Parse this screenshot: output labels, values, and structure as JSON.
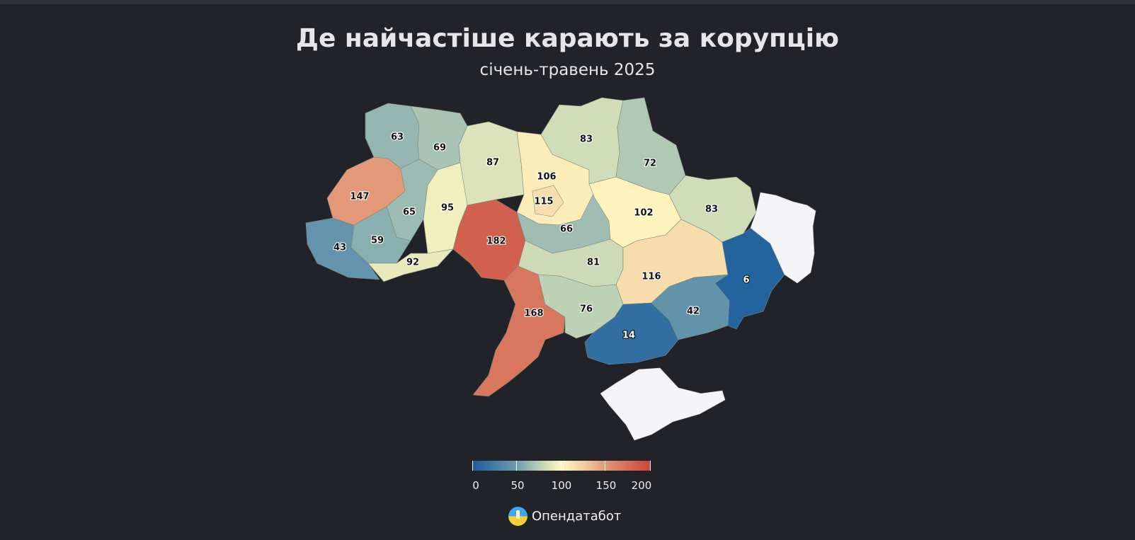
{
  "title": "Де найчастіше карають за корупцію",
  "subtitle": "січень-травень 2025",
  "legend": {
    "ticks": [
      "0",
      "50",
      "100",
      "150",
      "200"
    ],
    "range": [
      0,
      200
    ],
    "colors": [
      "#1a5c9c",
      "#6f9dae",
      "#c9d9b6",
      "#fff6c0",
      "#f2cfa0",
      "#e19272",
      "#c8443a"
    ]
  },
  "brand": {
    "name": "Опендатабот",
    "icon": "opendatabot-logo-icon"
  },
  "regions": [
    {
      "id": "volyn",
      "value": 63
    },
    {
      "id": "rivne",
      "value": 69
    },
    {
      "id": "zhytomyr",
      "value": 87
    },
    {
      "id": "kyiv-oblast",
      "value": 106
    },
    {
      "id": "kyiv-city",
      "value": 115
    },
    {
      "id": "chernihiv",
      "value": 83
    },
    {
      "id": "sumy",
      "value": 72
    },
    {
      "id": "lviv",
      "value": 147
    },
    {
      "id": "ternopil",
      "value": 65
    },
    {
      "id": "khmelnytskyi",
      "value": 95
    },
    {
      "id": "ivano-frankivsk",
      "value": 59
    },
    {
      "id": "zakarpattia",
      "value": 43
    },
    {
      "id": "chernivtsi",
      "value": 92
    },
    {
      "id": "vinnytsia",
      "value": 182
    },
    {
      "id": "cherkasy",
      "value": 66
    },
    {
      "id": "poltava",
      "value": 102
    },
    {
      "id": "kharkiv",
      "value": 83
    },
    {
      "id": "kirovohrad",
      "value": 81
    },
    {
      "id": "dnipropetrovsk",
      "value": 116
    },
    {
      "id": "donetsk",
      "value": 6
    },
    {
      "id": "odesa",
      "value": 168
    },
    {
      "id": "mykolaiv",
      "value": 76
    },
    {
      "id": "kherson",
      "value": 14
    },
    {
      "id": "zaporizhzhia",
      "value": 42
    },
    {
      "id": "luhansk",
      "value": null
    },
    {
      "id": "crimea",
      "value": null
    }
  ]
}
